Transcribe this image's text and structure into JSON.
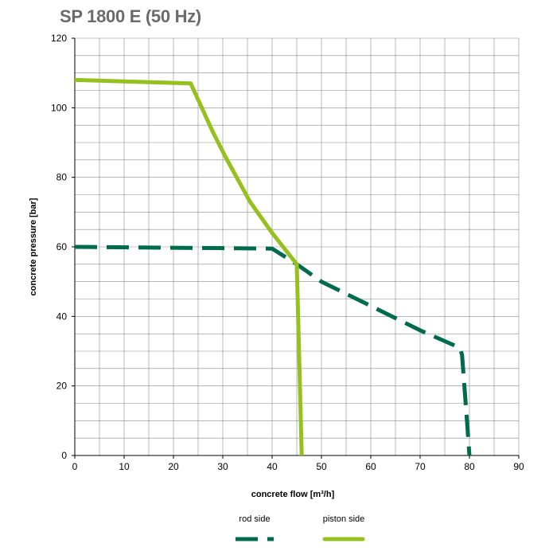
{
  "chart_data": {
    "type": "line",
    "title": "SP 1800 E (50 Hz)",
    "xlabel": "concrete flow [m³/h]",
    "ylabel": "concrete pressure [bar]",
    "xlim": [
      0,
      90
    ],
    "ylim": [
      0,
      120
    ],
    "x_ticks": [
      0,
      10,
      20,
      30,
      40,
      50,
      60,
      70,
      80,
      90
    ],
    "y_ticks": [
      0,
      20,
      40,
      60,
      80,
      100,
      120
    ],
    "x_minor_step": 5,
    "y_minor_step": 5,
    "grid": true,
    "legend_position": "bottom-center",
    "series": [
      {
        "name": "rod side",
        "color": "#006b4e",
        "style": "dashed",
        "points": [
          [
            0,
            60
          ],
          [
            40,
            59.5
          ],
          [
            45,
            55
          ],
          [
            50,
            50
          ],
          [
            60,
            43
          ],
          [
            70,
            36
          ],
          [
            78,
            31
          ],
          [
            78.5,
            29
          ],
          [
            79.5,
            10
          ],
          [
            80,
            0
          ]
        ]
      },
      {
        "name": "piston side",
        "color": "#95c11f",
        "style": "solid",
        "points": [
          [
            0,
            108
          ],
          [
            23.5,
            107
          ],
          [
            28,
            93
          ],
          [
            30.5,
            86
          ],
          [
            35.5,
            73
          ],
          [
            40,
            64
          ],
          [
            45,
            55
          ],
          [
            46,
            0
          ]
        ]
      }
    ]
  }
}
